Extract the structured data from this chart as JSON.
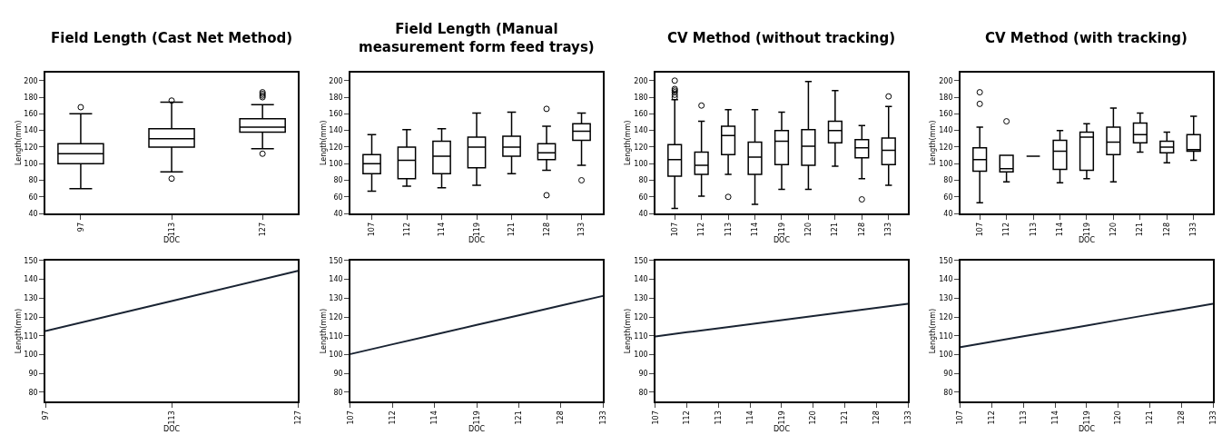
{
  "chart_data": [
    {
      "type": "box",
      "title": "Field Length (Cast Net Method)",
      "xlabel": "DOC",
      "ylabel": "Length(mm)",
      "color": "#000000",
      "categories": [
        "97",
        "113",
        "127"
      ],
      "ylim": [
        40,
        210
      ],
      "yticks": [
        40,
        60,
        80,
        100,
        120,
        140,
        160,
        180,
        200
      ],
      "boxes": [
        {
          "low": 70,
          "q1": 100,
          "median": 112,
          "q3": 124,
          "high": 160,
          "outliers": [
            168
          ]
        },
        {
          "low": 90,
          "q1": 120,
          "median": 130,
          "q3": 142,
          "high": 174,
          "outliers": [
            82,
            176
          ]
        },
        {
          "low": 118,
          "q1": 138,
          "median": 144,
          "q3": 154,
          "high": 171,
          "outliers": [
            112,
            180,
            182,
            184,
            186
          ]
        }
      ]
    },
    {
      "type": "box",
      "title": "Field Length (Manual measurement form feed trays)",
      "xlabel": "DOC",
      "ylabel": "Length(mm)",
      "color": "#000000",
      "categories": [
        "107",
        "112",
        "114",
        "119",
        "121",
        "128",
        "133"
      ],
      "ylim": [
        40,
        210
      ],
      "yticks": [
        40,
        60,
        80,
        100,
        120,
        140,
        160,
        180,
        200
      ],
      "boxes": [
        {
          "low": 67,
          "q1": 88,
          "median": 100,
          "q3": 111,
          "high": 135
        },
        {
          "low": 73,
          "q1": 82,
          "median": 104,
          "q3": 120,
          "high": 141
        },
        {
          "low": 71,
          "q1": 88,
          "median": 109,
          "q3": 127,
          "high": 142
        },
        {
          "low": 74,
          "q1": 95,
          "median": 120,
          "q3": 132,
          "high": 161
        },
        {
          "low": 88,
          "q1": 109,
          "median": 120,
          "q3": 133,
          "high": 162
        },
        {
          "low": 92,
          "q1": 105,
          "median": 113,
          "q3": 124,
          "high": 145,
          "outliers": [
            62,
            166
          ]
        },
        {
          "low": 98,
          "q1": 128,
          "median": 139,
          "q3": 148,
          "high": 161,
          "outliers": [
            80
          ]
        }
      ]
    },
    {
      "type": "box",
      "title": "CV Method (without tracking)",
      "xlabel": "DOC",
      "ylabel": "Length(mm)",
      "color": "#000000",
      "categories": [
        "107",
        "112",
        "113",
        "114",
        "119",
        "120",
        "121",
        "128",
        "133"
      ],
      "ylim": [
        40,
        210
      ],
      "yticks": [
        40,
        60,
        80,
        100,
        120,
        140,
        160,
        180,
        200
      ],
      "boxes": [
        {
          "low": 46,
          "q1": 85,
          "median": 105,
          "q3": 123,
          "high": 177,
          "outliers": [
            180,
            183,
            186,
            188,
            190,
            200
          ]
        },
        {
          "low": 61,
          "q1": 87,
          "median": 98,
          "q3": 114,
          "high": 151,
          "outliers": [
            170
          ]
        },
        {
          "low": 87,
          "q1": 111,
          "median": 134,
          "q3": 145,
          "high": 165,
          "outliers": [
            60
          ]
        },
        {
          "low": 51,
          "q1": 87,
          "median": 108,
          "q3": 126,
          "high": 165
        },
        {
          "low": 69,
          "q1": 99,
          "median": 127,
          "q3": 140,
          "high": 162
        },
        {
          "low": 69,
          "q1": 98,
          "median": 121,
          "q3": 141,
          "high": 199
        },
        {
          "low": 97,
          "q1": 125,
          "median": 140,
          "q3": 151,
          "high": 188
        },
        {
          "low": 82,
          "q1": 107,
          "median": 119,
          "q3": 129,
          "high": 146,
          "outliers": [
            57
          ]
        },
        {
          "low": 74,
          "q1": 99,
          "median": 116,
          "q3": 131,
          "high": 169,
          "outliers": [
            181
          ]
        }
      ]
    },
    {
      "type": "box",
      "title": "CV Method (with tracking)",
      "xlabel": "DOC",
      "ylabel": "Length(mm)",
      "color": "#000000",
      "categories": [
        "107",
        "112",
        "113",
        "114",
        "119",
        "120",
        "121",
        "128",
        "133"
      ],
      "ylim": [
        40,
        210
      ],
      "yticks": [
        40,
        60,
        80,
        100,
        120,
        140,
        160,
        180,
        200
      ],
      "boxes": [
        {
          "low": 53,
          "q1": 91,
          "median": 105,
          "q3": 119,
          "high": 144,
          "outliers": [
            172,
            186
          ]
        },
        {
          "low": 78,
          "q1": 90,
          "median": 94,
          "q3": 110,
          "high": 110,
          "outliers": [
            151
          ]
        },
        {
          "low": 109,
          "q1": 109,
          "median": 109,
          "q3": 109,
          "high": 109
        },
        {
          "low": 77,
          "q1": 93,
          "median": 115,
          "q3": 128,
          "high": 140
        },
        {
          "low": 82,
          "q1": 92,
          "median": 132,
          "q3": 138,
          "high": 148
        },
        {
          "low": 78,
          "q1": 111,
          "median": 126,
          "q3": 144,
          "high": 167
        },
        {
          "low": 114,
          "q1": 125,
          "median": 135,
          "q3": 149,
          "high": 161
        },
        {
          "low": 101,
          "q1": 113,
          "median": 120,
          "q3": 127,
          "high": 138
        },
        {
          "low": 104,
          "q1": 115,
          "median": 117,
          "q3": 135,
          "high": 157
        }
      ]
    },
    {
      "type": "line",
      "xlabel": "DOC",
      "ylabel": "Length(mm)",
      "color": "#1a2433",
      "categories": [
        "97",
        "113",
        "127"
      ],
      "values": [
        112.5,
        128.5,
        144.5
      ],
      "ylim": [
        75,
        150
      ],
      "yticks": [
        80,
        90,
        100,
        110,
        120,
        130,
        140,
        150
      ]
    },
    {
      "type": "line",
      "xlabel": "DOC",
      "ylabel": "Length(mm)",
      "color": "#1a2433",
      "categories": [
        "107",
        "112",
        "114",
        "119",
        "121",
        "128",
        "133"
      ],
      "values": [
        100.3,
        105.5,
        110.6,
        115.8,
        120.9,
        126.1,
        131.2
      ],
      "ylim": [
        75,
        150
      ],
      "yticks": [
        80,
        90,
        100,
        110,
        120,
        130,
        140,
        150
      ]
    },
    {
      "type": "line",
      "xlabel": "DOC",
      "ylabel": "Length(mm)",
      "color": "#1a2433",
      "categories": [
        "107",
        "112",
        "113",
        "114",
        "119",
        "120",
        "121",
        "128",
        "133"
      ],
      "values": [
        109.7,
        111.9,
        114.0,
        116.2,
        118.3,
        120.5,
        122.7,
        124.8,
        127.0
      ],
      "ylim": [
        75,
        150
      ],
      "yticks": [
        80,
        90,
        100,
        110,
        120,
        130,
        140,
        150
      ]
    },
    {
      "type": "line",
      "xlabel": "DOC",
      "ylabel": "Length(mm)",
      "color": "#1a2433",
      "categories": [
        "107",
        "112",
        "113",
        "114",
        "119",
        "120",
        "121",
        "128",
        "133"
      ],
      "values": [
        104.0,
        106.9,
        109.8,
        112.6,
        115.5,
        118.4,
        121.3,
        124.1,
        127.0
      ],
      "ylim": [
        75,
        150
      ],
      "yticks": [
        80,
        90,
        100,
        110,
        120,
        130,
        140,
        150
      ]
    }
  ]
}
